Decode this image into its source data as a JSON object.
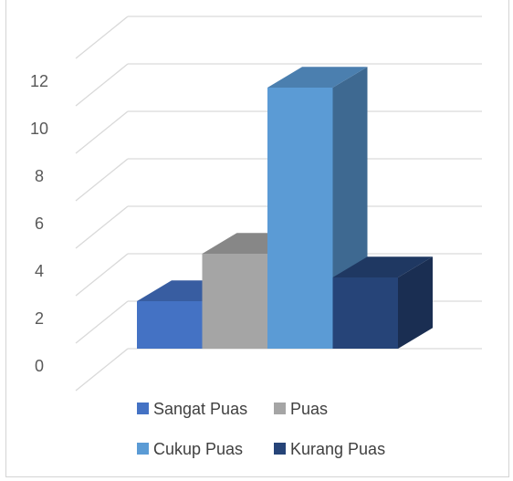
{
  "chart_data": {
    "type": "bar",
    "style": "3d-clustered-column",
    "categories": [
      "Sangat Puas",
      "Puas",
      "Cukup Puas",
      "Kurang Puas"
    ],
    "values": [
      2,
      4,
      11,
      3
    ],
    "colors": [
      "#4472C4",
      "#A5A5A5",
      "#5B9BD5",
      "#264478"
    ],
    "ylim": [
      0,
      12
    ],
    "yticks": [
      "0",
      "2",
      "4",
      "6",
      "8",
      "10",
      "12"
    ],
    "grid": true,
    "legend_position": "bottom",
    "title": "",
    "xlabel": "",
    "ylabel": ""
  }
}
